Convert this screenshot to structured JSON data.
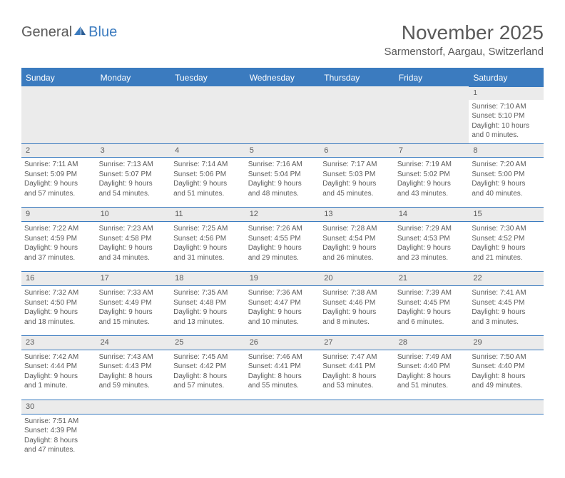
{
  "logo": {
    "text1": "General",
    "text2": "Blue"
  },
  "title": "November 2025",
  "location": "Sarmenstorf, Aargau, Switzerland",
  "weekdays": [
    "Sunday",
    "Monday",
    "Tuesday",
    "Wednesday",
    "Thursday",
    "Friday",
    "Saturday"
  ],
  "colors": {
    "accent": "#3b7bbf",
    "daynum_bg": "#ebebeb",
    "text": "#5a5a5a"
  },
  "weeks": [
    [
      null,
      null,
      null,
      null,
      null,
      null,
      {
        "n": "1",
        "sr": "Sunrise: 7:10 AM",
        "ss": "Sunset: 5:10 PM",
        "d1": "Daylight: 10 hours",
        "d2": "and 0 minutes."
      }
    ],
    [
      {
        "n": "2",
        "sr": "Sunrise: 7:11 AM",
        "ss": "Sunset: 5:09 PM",
        "d1": "Daylight: 9 hours",
        "d2": "and 57 minutes."
      },
      {
        "n": "3",
        "sr": "Sunrise: 7:13 AM",
        "ss": "Sunset: 5:07 PM",
        "d1": "Daylight: 9 hours",
        "d2": "and 54 minutes."
      },
      {
        "n": "4",
        "sr": "Sunrise: 7:14 AM",
        "ss": "Sunset: 5:06 PM",
        "d1": "Daylight: 9 hours",
        "d2": "and 51 minutes."
      },
      {
        "n": "5",
        "sr": "Sunrise: 7:16 AM",
        "ss": "Sunset: 5:04 PM",
        "d1": "Daylight: 9 hours",
        "d2": "and 48 minutes."
      },
      {
        "n": "6",
        "sr": "Sunrise: 7:17 AM",
        "ss": "Sunset: 5:03 PM",
        "d1": "Daylight: 9 hours",
        "d2": "and 45 minutes."
      },
      {
        "n": "7",
        "sr": "Sunrise: 7:19 AM",
        "ss": "Sunset: 5:02 PM",
        "d1": "Daylight: 9 hours",
        "d2": "and 43 minutes."
      },
      {
        "n": "8",
        "sr": "Sunrise: 7:20 AM",
        "ss": "Sunset: 5:00 PM",
        "d1": "Daylight: 9 hours",
        "d2": "and 40 minutes."
      }
    ],
    [
      {
        "n": "9",
        "sr": "Sunrise: 7:22 AM",
        "ss": "Sunset: 4:59 PM",
        "d1": "Daylight: 9 hours",
        "d2": "and 37 minutes."
      },
      {
        "n": "10",
        "sr": "Sunrise: 7:23 AM",
        "ss": "Sunset: 4:58 PM",
        "d1": "Daylight: 9 hours",
        "d2": "and 34 minutes."
      },
      {
        "n": "11",
        "sr": "Sunrise: 7:25 AM",
        "ss": "Sunset: 4:56 PM",
        "d1": "Daylight: 9 hours",
        "d2": "and 31 minutes."
      },
      {
        "n": "12",
        "sr": "Sunrise: 7:26 AM",
        "ss": "Sunset: 4:55 PM",
        "d1": "Daylight: 9 hours",
        "d2": "and 29 minutes."
      },
      {
        "n": "13",
        "sr": "Sunrise: 7:28 AM",
        "ss": "Sunset: 4:54 PM",
        "d1": "Daylight: 9 hours",
        "d2": "and 26 minutes."
      },
      {
        "n": "14",
        "sr": "Sunrise: 7:29 AM",
        "ss": "Sunset: 4:53 PM",
        "d1": "Daylight: 9 hours",
        "d2": "and 23 minutes."
      },
      {
        "n": "15",
        "sr": "Sunrise: 7:30 AM",
        "ss": "Sunset: 4:52 PM",
        "d1": "Daylight: 9 hours",
        "d2": "and 21 minutes."
      }
    ],
    [
      {
        "n": "16",
        "sr": "Sunrise: 7:32 AM",
        "ss": "Sunset: 4:50 PM",
        "d1": "Daylight: 9 hours",
        "d2": "and 18 minutes."
      },
      {
        "n": "17",
        "sr": "Sunrise: 7:33 AM",
        "ss": "Sunset: 4:49 PM",
        "d1": "Daylight: 9 hours",
        "d2": "and 15 minutes."
      },
      {
        "n": "18",
        "sr": "Sunrise: 7:35 AM",
        "ss": "Sunset: 4:48 PM",
        "d1": "Daylight: 9 hours",
        "d2": "and 13 minutes."
      },
      {
        "n": "19",
        "sr": "Sunrise: 7:36 AM",
        "ss": "Sunset: 4:47 PM",
        "d1": "Daylight: 9 hours",
        "d2": "and 10 minutes."
      },
      {
        "n": "20",
        "sr": "Sunrise: 7:38 AM",
        "ss": "Sunset: 4:46 PM",
        "d1": "Daylight: 9 hours",
        "d2": "and 8 minutes."
      },
      {
        "n": "21",
        "sr": "Sunrise: 7:39 AM",
        "ss": "Sunset: 4:45 PM",
        "d1": "Daylight: 9 hours",
        "d2": "and 6 minutes."
      },
      {
        "n": "22",
        "sr": "Sunrise: 7:41 AM",
        "ss": "Sunset: 4:45 PM",
        "d1": "Daylight: 9 hours",
        "d2": "and 3 minutes."
      }
    ],
    [
      {
        "n": "23",
        "sr": "Sunrise: 7:42 AM",
        "ss": "Sunset: 4:44 PM",
        "d1": "Daylight: 9 hours",
        "d2": "and 1 minute."
      },
      {
        "n": "24",
        "sr": "Sunrise: 7:43 AM",
        "ss": "Sunset: 4:43 PM",
        "d1": "Daylight: 8 hours",
        "d2": "and 59 minutes."
      },
      {
        "n": "25",
        "sr": "Sunrise: 7:45 AM",
        "ss": "Sunset: 4:42 PM",
        "d1": "Daylight: 8 hours",
        "d2": "and 57 minutes."
      },
      {
        "n": "26",
        "sr": "Sunrise: 7:46 AM",
        "ss": "Sunset: 4:41 PM",
        "d1": "Daylight: 8 hours",
        "d2": "and 55 minutes."
      },
      {
        "n": "27",
        "sr": "Sunrise: 7:47 AM",
        "ss": "Sunset: 4:41 PM",
        "d1": "Daylight: 8 hours",
        "d2": "and 53 minutes."
      },
      {
        "n": "28",
        "sr": "Sunrise: 7:49 AM",
        "ss": "Sunset: 4:40 PM",
        "d1": "Daylight: 8 hours",
        "d2": "and 51 minutes."
      },
      {
        "n": "29",
        "sr": "Sunrise: 7:50 AM",
        "ss": "Sunset: 4:40 PM",
        "d1": "Daylight: 8 hours",
        "d2": "and 49 minutes."
      }
    ],
    [
      {
        "n": "30",
        "sr": "Sunrise: 7:51 AM",
        "ss": "Sunset: 4:39 PM",
        "d1": "Daylight: 8 hours",
        "d2": "and 47 minutes."
      },
      null,
      null,
      null,
      null,
      null,
      null
    ]
  ]
}
